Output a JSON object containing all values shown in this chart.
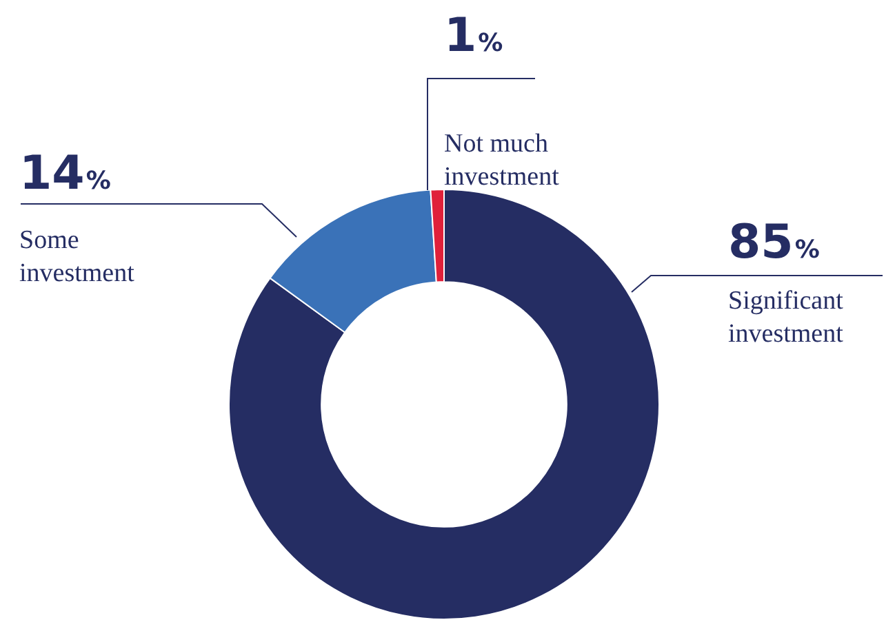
{
  "chart_data": {
    "type": "donut",
    "categories": [
      "Significant investment",
      "Some investment",
      "Not much investment"
    ],
    "values": [
      85,
      14,
      1
    ],
    "colors": [
      "#252d63",
      "#3a72b8",
      "#e0203a"
    ],
    "value_labels": [
      "85%",
      "14%",
      "1%"
    ],
    "legend": false
  }
}
